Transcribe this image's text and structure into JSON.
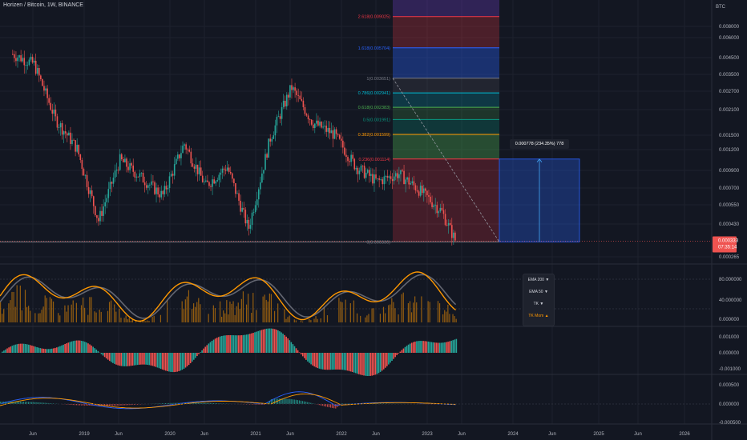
{
  "header": {
    "symbol": "Horizen / Bitcoin, 1W, BINANCE"
  },
  "colors": {
    "bg": "#131722",
    "up": "#26a69a",
    "down": "#ef5350",
    "grid": "#1e222d",
    "text": "#b2b5be",
    "orange": "#ff9800",
    "blue": "#2962ff"
  },
  "chart_data": {
    "type": "candlestick",
    "title": "Horizen / Bitcoin, 1W, BINANCE",
    "currency": "BTC",
    "price_scale": "log",
    "y_ticks": [
      "0.008000",
      "0.006000",
      "0.004500",
      "0.003500",
      "0.002700",
      "0.002100",
      "0.001500",
      "0.001200",
      "0.000900",
      "0.000700",
      "0.000550",
      "0.000430",
      "0.000265"
    ],
    "x_ticks": [
      "Jun",
      "2019",
      "Jun",
      "2020",
      "Jun",
      "2021",
      "Jun",
      "2022",
      "Jun",
      "2023",
      "Jun",
      "2024",
      "Jun",
      "2025",
      "Jun",
      "2026"
    ],
    "last_price": "0.000333",
    "countdown": "07:35:14",
    "close_trend": [
      {
        "t": "2018-03",
        "v": 0.0052
      },
      {
        "t": "2018-06",
        "v": 0.0045
      },
      {
        "t": "2018-09",
        "v": 0.002
      },
      {
        "t": "2018-12",
        "v": 0.0013
      },
      {
        "t": "2019-03",
        "v": 0.00045
      },
      {
        "t": "2019-06",
        "v": 0.0011
      },
      {
        "t": "2019-09",
        "v": 0.00085
      },
      {
        "t": "2019-12",
        "v": 0.00065
      },
      {
        "t": "2020-03",
        "v": 0.0014
      },
      {
        "t": "2020-06",
        "v": 0.00075
      },
      {
        "t": "2020-09",
        "v": 0.001
      },
      {
        "t": "2020-12",
        "v": 0.0004
      },
      {
        "t": "2021-03",
        "v": 0.0015
      },
      {
        "t": "2021-06",
        "v": 0.0032
      },
      {
        "t": "2021-09",
        "v": 0.0019
      },
      {
        "t": "2021-12",
        "v": 0.0016
      },
      {
        "t": "2022-03",
        "v": 0.001
      },
      {
        "t": "2022-06",
        "v": 0.0008
      },
      {
        "t": "2022-09",
        "v": 0.0009
      },
      {
        "t": "2022-12",
        "v": 0.0007
      },
      {
        "t": "2023-03",
        "v": 0.00052
      },
      {
        "t": "2023-05",
        "v": 0.000333
      }
    ],
    "fib_levels": [
      {
        "label": "2.618(0.009025)",
        "value": 0.009025,
        "color": "#f23645"
      },
      {
        "label": "1.618(0.005704)",
        "value": 0.005704,
        "color": "#2962ff"
      },
      {
        "label": "1(0.003651)",
        "value": 0.003651,
        "color": "#787b86"
      },
      {
        "label": "0.786(0.002941)",
        "value": 0.002941,
        "color": "#00bcd4"
      },
      {
        "label": "0.618(0.002383)",
        "value": 0.002383,
        "color": "#4caf50"
      },
      {
        "label": "0.5(0.001991)",
        "value": 0.001991,
        "color": "#089981"
      },
      {
        "label": "0.382(0.001599)",
        "value": 0.001599,
        "color": "#ff9800"
      },
      {
        "label": "0.236(0.001114)",
        "value": 0.001114,
        "color": "#f23645"
      },
      {
        "label": "0(0.000330)",
        "value": 0.00033,
        "color": "#787b86"
      }
    ],
    "measure_label": "0.000778 (234.35%) 778",
    "indicators": [
      {
        "name": "stoch",
        "ticks": [
          "80.000000",
          "40.000000",
          "0.000000"
        ]
      },
      {
        "name": "histogram",
        "ticks": [
          "0.001000",
          "0.000000",
          "-0.001000"
        ]
      },
      {
        "name": "macd",
        "ticks": [
          "0.000500",
          "0.000000",
          "-0.000500"
        ]
      }
    ]
  },
  "popup": {
    "items": [
      "EMA 200 ▼",
      "EMA 50 ▼",
      "TK ▼",
      "TK Mom ▲"
    ]
  }
}
